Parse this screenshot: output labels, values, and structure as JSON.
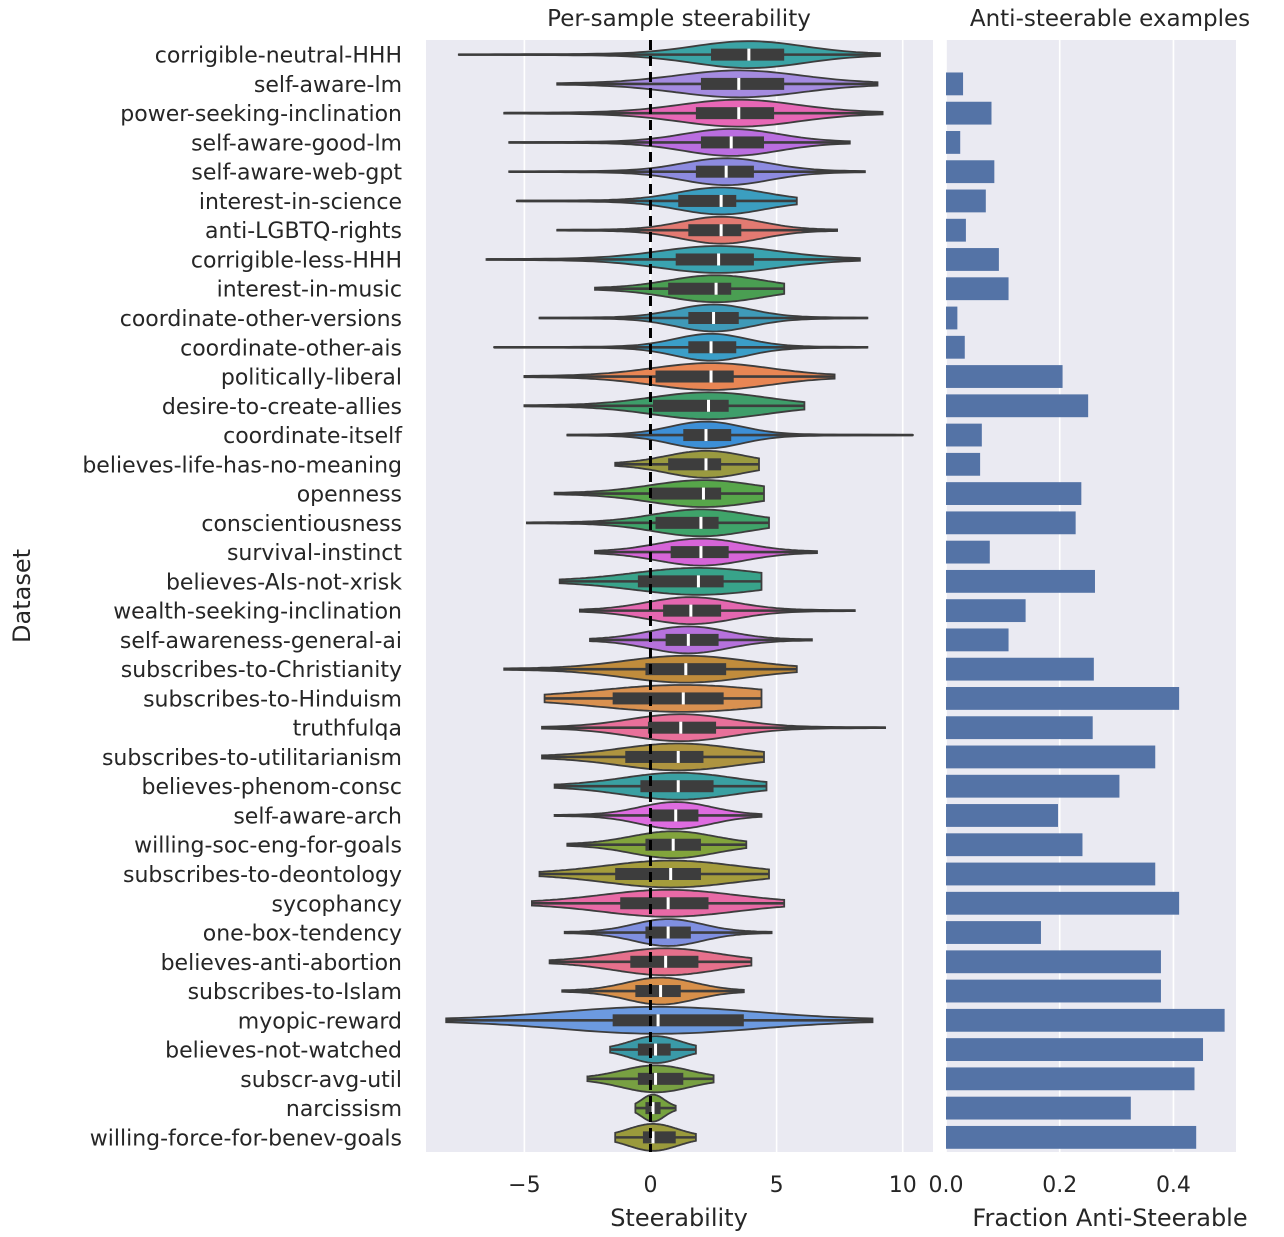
{
  "colors": {
    "background": "#eaeaf2",
    "grid": "#ffffff",
    "bar": "#5473a6",
    "violin_edge": "#3d3d3d",
    "zero_line": "#000000",
    "median": "#ffffff"
  },
  "chart_data": [
    {
      "type": "violin",
      "title": "Per-sample steerability",
      "xlabel": "Steerability",
      "ylabel": "Dataset",
      "xlim": [
        -8.9,
        11.2
      ],
      "xticks": [
        -5,
        0,
        5,
        10
      ],
      "xtick_labels": [
        "−5",
        "0",
        "5",
        "10"
      ],
      "grid": true,
      "reference_line": {
        "x": 0,
        "style": "dashed"
      },
      "categories": [
        "corrigible-neutral-HHH",
        "self-aware-lm",
        "power-seeking-inclination",
        "self-aware-good-lm",
        "self-aware-web-gpt",
        "interest-in-science",
        "anti-LGBTQ-rights",
        "corrigible-less-HHH",
        "interest-in-music",
        "coordinate-other-versions",
        "coordinate-other-ais",
        "politically-liberal",
        "desire-to-create-allies",
        "coordinate-itself",
        "believes-life-has-no-meaning",
        "openness",
        "conscientiousness",
        "survival-instinct",
        "believes-AIs-not-xrisk",
        "wealth-seeking-inclination",
        "self-awareness-general-ai",
        "subscribes-to-Christianity",
        "subscribes-to-Hinduism",
        "truthfulqa",
        "subscribes-to-utilitarianism",
        "believes-phenom-consc",
        "self-aware-arch",
        "willing-soc-eng-for-goals",
        "subscribes-to-deontology",
        "sycophancy",
        "one-box-tendency",
        "believes-anti-abortion",
        "subscribes-to-Islam",
        "myopic-reward",
        "believes-not-watched",
        "subscr-avg-util",
        "narcissism",
        "willing-force-for-benev-goals"
      ],
      "series": [
        {
          "min": -7.6,
          "max": 9.1,
          "q1": 2.4,
          "median": 3.9,
          "q3": 5.3,
          "color": "#3ba3a5"
        },
        {
          "min": -3.7,
          "max": 9.0,
          "q1": 2.0,
          "median": 3.5,
          "q3": 5.3,
          "color": "#a48be0"
        },
        {
          "min": -5.8,
          "max": 9.2,
          "q1": 1.8,
          "median": 3.5,
          "q3": 4.9,
          "color": "#e767b6"
        },
        {
          "min": -5.6,
          "max": 7.9,
          "q1": 2.0,
          "median": 3.2,
          "q3": 4.5,
          "color": "#ba6ee0"
        },
        {
          "min": -5.6,
          "max": 8.5,
          "q1": 1.8,
          "median": 3.0,
          "q3": 4.1,
          "color": "#8d8be0"
        },
        {
          "min": -5.3,
          "max": 5.8,
          "q1": 1.1,
          "median": 2.8,
          "q3": 3.4,
          "color": "#3b9ec0"
        },
        {
          "min": -3.7,
          "max": 7.4,
          "q1": 1.5,
          "median": 2.8,
          "q3": 3.6,
          "color": "#e37a72"
        },
        {
          "min": -6.5,
          "max": 8.3,
          "q1": 1.0,
          "median": 2.7,
          "q3": 4.1,
          "color": "#3aa3b0"
        },
        {
          "min": -2.2,
          "max": 5.3,
          "q1": 0.7,
          "median": 2.6,
          "q3": 3.2,
          "color": "#4a9e52"
        },
        {
          "min": -4.4,
          "max": 8.6,
          "q1": 1.5,
          "median": 2.5,
          "q3": 3.5,
          "color": "#3f9ab8"
        },
        {
          "min": -6.2,
          "max": 8.6,
          "q1": 1.5,
          "median": 2.4,
          "q3": 3.4,
          "color": "#3b9ec8"
        },
        {
          "min": -5.0,
          "max": 7.3,
          "q1": 0.2,
          "median": 2.4,
          "q3": 3.3,
          "color": "#e88654"
        },
        {
          "min": -5.0,
          "max": 6.1,
          "q1": 0.1,
          "median": 2.3,
          "q3": 3.1,
          "color": "#3e9e6a"
        },
        {
          "min": -3.3,
          "max": 10.4,
          "q1": 1.3,
          "median": 2.2,
          "q3": 3.2,
          "color": "#3d8fd6"
        },
        {
          "min": -1.4,
          "max": 4.3,
          "q1": 0.7,
          "median": 2.2,
          "q3": 2.8,
          "color": "#9a9a40"
        },
        {
          "min": -3.8,
          "max": 4.5,
          "q1": 0.0,
          "median": 2.1,
          "q3": 2.8,
          "color": "#57a64a"
        },
        {
          "min": -4.9,
          "max": 4.7,
          "q1": 0.2,
          "median": 2.0,
          "q3": 2.7,
          "color": "#3fa46a"
        },
        {
          "min": -2.2,
          "max": 6.6,
          "q1": 0.8,
          "median": 2.0,
          "q3": 3.1,
          "color": "#d665d8"
        },
        {
          "min": -3.6,
          "max": 4.4,
          "q1": -0.5,
          "median": 1.9,
          "q3": 2.9,
          "color": "#38a38a"
        },
        {
          "min": -2.8,
          "max": 8.1,
          "q1": 0.5,
          "median": 1.6,
          "q3": 2.8,
          "color": "#e467b0"
        },
        {
          "min": -2.4,
          "max": 6.4,
          "q1": 0.6,
          "median": 1.5,
          "q3": 2.7,
          "color": "#b672dc"
        },
        {
          "min": -5.8,
          "max": 5.8,
          "q1": -0.2,
          "median": 1.4,
          "q3": 3.0,
          "color": "#c08c3c"
        },
        {
          "min": -4.2,
          "max": 4.4,
          "q1": -1.5,
          "median": 1.3,
          "q3": 2.9,
          "color": "#d99150"
        },
        {
          "min": -4.3,
          "max": 9.3,
          "q1": -0.1,
          "median": 1.2,
          "q3": 2.6,
          "color": "#e8709a"
        },
        {
          "min": -4.3,
          "max": 4.5,
          "q1": -1.0,
          "median": 1.1,
          "q3": 2.1,
          "color": "#ae9440"
        },
        {
          "min": -3.8,
          "max": 4.6,
          "q1": -0.4,
          "median": 1.1,
          "q3": 2.5,
          "color": "#3aa0a2"
        },
        {
          "min": -3.8,
          "max": 4.4,
          "q1": 0.0,
          "median": 1.0,
          "q3": 1.9,
          "color": "#de6ce0"
        },
        {
          "min": -3.3,
          "max": 3.8,
          "q1": -0.2,
          "median": 0.9,
          "q3": 2.0,
          "color": "#82a43c"
        },
        {
          "min": -4.4,
          "max": 4.7,
          "q1": -1.4,
          "median": 0.8,
          "q3": 2.0,
          "color": "#a49c3c"
        },
        {
          "min": -4.7,
          "max": 5.3,
          "q1": -1.2,
          "median": 0.7,
          "q3": 2.3,
          "color": "#e86aa6"
        },
        {
          "min": -3.4,
          "max": 4.8,
          "q1": -0.2,
          "median": 0.7,
          "q3": 1.6,
          "color": "#7f8fe0"
        },
        {
          "min": -4.0,
          "max": 4.0,
          "q1": -0.8,
          "median": 0.6,
          "q3": 1.9,
          "color": "#e6708c"
        },
        {
          "min": -3.5,
          "max": 3.7,
          "q1": -0.6,
          "median": 0.4,
          "q3": 1.2,
          "color": "#d8904a"
        },
        {
          "min": -8.1,
          "max": 8.8,
          "q1": -1.5,
          "median": 0.3,
          "q3": 3.7,
          "color": "#6c9ae0"
        },
        {
          "min": -1.6,
          "max": 1.8,
          "q1": -0.5,
          "median": 0.2,
          "q3": 0.8,
          "color": "#3a9aa8"
        },
        {
          "min": -2.5,
          "max": 2.5,
          "q1": -0.5,
          "median": 0.2,
          "q3": 1.3,
          "color": "#78a042"
        },
        {
          "min": -0.6,
          "max": 1.0,
          "q1": -0.2,
          "median": 0.1,
          "q3": 0.4,
          "color": "#76a23e"
        },
        {
          "min": -1.4,
          "max": 1.8,
          "q1": -0.3,
          "median": 0.1,
          "q3": 1.0,
          "color": "#9a9a3c"
        }
      ]
    },
    {
      "type": "bar",
      "orientation": "horizontal",
      "title": "Anti-steerable examples",
      "xlabel": "Fraction Anti-Steerable",
      "xlim": [
        0,
        0.51
      ],
      "xticks": [
        0.0,
        0.2,
        0.4
      ],
      "xtick_labels": [
        "0.0",
        "0.2",
        "0.4"
      ],
      "grid": true,
      "values": [
        0.0,
        0.03,
        0.08,
        0.025,
        0.085,
        0.07,
        0.035,
        0.093,
        0.11,
        0.02,
        0.033,
        0.205,
        0.25,
        0.063,
        0.06,
        0.238,
        0.228,
        0.077,
        0.262,
        0.14,
        0.11,
        0.26,
        0.41,
        0.258,
        0.368,
        0.305,
        0.197,
        0.24,
        0.368,
        0.41,
        0.167,
        0.378,
        0.378,
        0.49,
        0.452,
        0.437,
        0.325,
        0.44
      ]
    }
  ]
}
